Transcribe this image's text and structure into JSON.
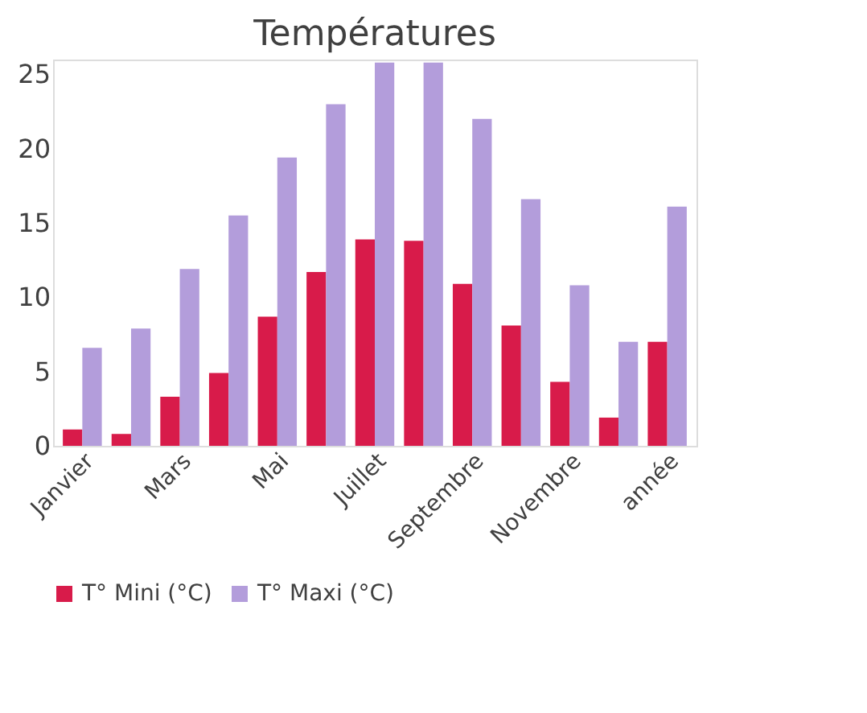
{
  "chart_data": {
    "type": "bar",
    "title": "Températures",
    "categories": [
      "Janvier",
      null,
      "Mars",
      null,
      "Mai",
      null,
      "Juillet",
      null,
      "Septembre",
      null,
      "Novembre",
      null,
      "année"
    ],
    "series": [
      {
        "name": "T° Mini (°C)",
        "color": "#d81b4a",
        "values": [
          1.1,
          0.8,
          3.3,
          4.9,
          8.7,
          11.7,
          13.9,
          13.8,
          10.9,
          8.1,
          4.3,
          1.9,
          7.0
        ]
      },
      {
        "name": "T° Maxi  (°C)",
        "color": "#b39ddb",
        "values": [
          6.6,
          7.9,
          11.9,
          15.5,
          19.4,
          23.0,
          25.8,
          25.8,
          22.0,
          16.6,
          10.8,
          7.0,
          16.1
        ]
      }
    ],
    "ylim": [
      0,
      26
    ],
    "yticks": [
      0,
      5,
      10,
      15,
      20,
      25
    ],
    "grid": false,
    "legend": "bottom"
  }
}
